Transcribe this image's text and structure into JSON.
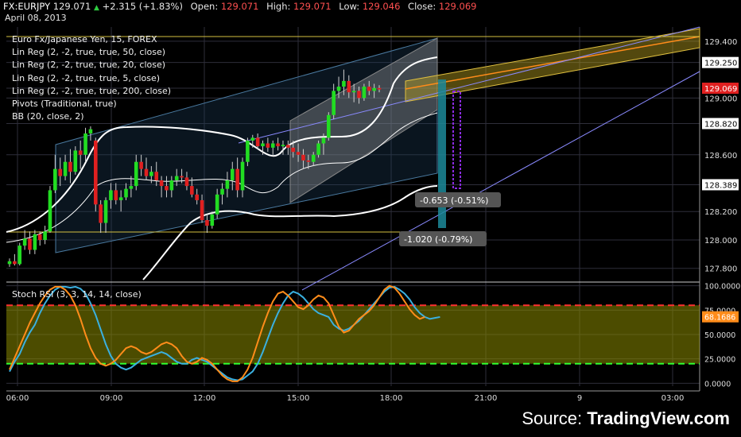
{
  "header": {
    "symbol": "FX:EURJPY",
    "last": "129.071",
    "change": "+2.315 (+1.83%)",
    "open_label": "Open:",
    "open": "129.071",
    "high_label": "High:",
    "high": "129.071",
    "low_label": "Low:",
    "low": "129.046",
    "close_label": "Close:",
    "close": "129.069",
    "date": "April 08, 2013"
  },
  "legend": [
    "Euro Fx/Japanese Yen, 15, FOREX",
    "Lin Reg (2, -2, true, true, 50, close)",
    "Lin Reg (2, -2, true, true, 20, close)",
    "Lin Reg (2, -2, true, true, 5, close)",
    "Lin Reg (2, -2, true, true, 200, close)",
    "Pivots (Traditional, true)",
    "BB (20, close, 2)"
  ],
  "rsi_title": "Stoch RSI (3, 3, 14, 14, close)",
  "source": {
    "prefix": "Source:",
    "brand": "TradingView.com"
  },
  "colors": {
    "up": "#22dd22",
    "down": "#e02020",
    "k_line": "#3ab0e0",
    "d_line": "#ff8c1a",
    "band": "#8a8a00",
    "price_badge": "#e02020",
    "rsi_badge": "#ff8c1a"
  },
  "chart_data": [
    {
      "type": "candlestick",
      "title": "Euro Fx/Japanese Yen, 15, FOREX",
      "x_ticks": [
        "06:00",
        "09:00",
        "12:00",
        "15:00",
        "18:00",
        "21:00",
        "9",
        "03:00"
      ],
      "y_ticks": [
        127.8,
        128.0,
        128.2,
        128.389,
        128.6,
        128.82,
        129.0,
        129.069,
        129.25,
        129.4
      ],
      "ylim": [
        127.72,
        129.5
      ],
      "price_labels": [
        "129.400",
        "129.250",
        "129.069",
        "129.000",
        "128.820",
        "128.600",
        "128.389",
        "128.200",
        "128.000",
        "127.800"
      ],
      "annotations": [
        "-0.653 (-0.51%)",
        "-1.020 (-0.79%)"
      ],
      "candles": [
        [
          127.83,
          127.87,
          127.81,
          127.85
        ],
        [
          127.85,
          127.9,
          127.82,
          127.83
        ],
        [
          127.83,
          127.98,
          127.82,
          127.96
        ],
        [
          127.96,
          128.07,
          127.93,
          128.01
        ],
        [
          128.01,
          128.06,
          127.9,
          127.93
        ],
        [
          127.93,
          128.07,
          127.9,
          128.04
        ],
        [
          128.04,
          128.06,
          127.96,
          128.0
        ],
        [
          128.0,
          128.1,
          127.97,
          128.06
        ],
        [
          128.06,
          128.38,
          128.05,
          128.35
        ],
        [
          128.35,
          128.6,
          128.33,
          128.5
        ],
        [
          128.5,
          128.58,
          128.38,
          128.45
        ],
        [
          128.45,
          128.6,
          128.42,
          128.55
        ],
        [
          128.55,
          128.64,
          128.4,
          128.48
        ],
        [
          128.48,
          128.66,
          128.46,
          128.63
        ],
        [
          128.63,
          128.7,
          128.5,
          128.6
        ],
        [
          128.6,
          128.79,
          128.55,
          128.75
        ],
        [
          128.75,
          128.8,
          128.7,
          128.78
        ],
        [
          128.7,
          128.72,
          128.2,
          128.25
        ],
        [
          128.25,
          128.28,
          128.05,
          128.12
        ],
        [
          128.12,
          128.3,
          128.05,
          128.28
        ],
        [
          128.28,
          128.4,
          128.22,
          128.35
        ],
        [
          128.35,
          128.4,
          128.25,
          128.28
        ],
        [
          128.28,
          128.35,
          128.2,
          128.3
        ],
        [
          128.3,
          128.4,
          128.28,
          128.36
        ],
        [
          128.36,
          128.45,
          128.3,
          128.38
        ],
        [
          128.38,
          128.6,
          128.35,
          128.55
        ],
        [
          128.55,
          128.6,
          128.45,
          128.5
        ],
        [
          128.5,
          128.58,
          128.42,
          128.45
        ],
        [
          128.45,
          128.52,
          128.4,
          128.48
        ],
        [
          128.48,
          128.55,
          128.38,
          128.42
        ],
        [
          128.42,
          128.45,
          128.3,
          128.38
        ],
        [
          128.38,
          128.45,
          128.3,
          128.35
        ],
        [
          128.35,
          128.45,
          128.3,
          128.42
        ],
        [
          128.42,
          128.5,
          128.38,
          128.45
        ],
        [
          128.45,
          128.5,
          128.4,
          128.44
        ],
        [
          128.44,
          128.48,
          128.35,
          128.38
        ],
        [
          128.38,
          128.44,
          128.3,
          128.32
        ],
        [
          128.32,
          128.36,
          128.25,
          128.28
        ],
        [
          128.28,
          128.32,
          128.12,
          128.14
        ],
        [
          128.14,
          128.18,
          128.05,
          128.1
        ],
        [
          128.1,
          128.2,
          128.08,
          128.18
        ],
        [
          128.18,
          128.36,
          128.15,
          128.32
        ],
        [
          128.32,
          128.4,
          128.25,
          128.36
        ],
        [
          128.36,
          128.48,
          128.3,
          128.42
        ],
        [
          128.42,
          128.55,
          128.35,
          128.5
        ],
        [
          128.5,
          128.58,
          128.3,
          128.35
        ],
        [
          128.35,
          128.58,
          128.3,
          128.55
        ],
        [
          128.55,
          128.72,
          128.52,
          128.7
        ],
        [
          128.7,
          128.74,
          128.65,
          128.72
        ],
        [
          128.72,
          128.75,
          128.64,
          128.66
        ],
        [
          128.66,
          128.7,
          128.6,
          128.68
        ],
        [
          128.68,
          128.72,
          128.62,
          128.65
        ],
        [
          128.65,
          128.7,
          128.6,
          128.68
        ],
        [
          128.68,
          128.72,
          128.63,
          128.66
        ],
        [
          128.66,
          128.7,
          128.6,
          128.67
        ],
        [
          128.67,
          128.7,
          128.6,
          128.65
        ],
        [
          128.65,
          128.7,
          128.58,
          128.62
        ],
        [
          128.62,
          128.68,
          128.55,
          128.6
        ],
        [
          128.6,
          128.64,
          128.5,
          128.56
        ],
        [
          128.56,
          128.6,
          128.5,
          128.55
        ],
        [
          128.55,
          128.62,
          128.52,
          128.6
        ],
        [
          128.6,
          128.7,
          128.58,
          128.68
        ],
        [
          128.68,
          128.75,
          128.6,
          128.72
        ],
        [
          128.72,
          128.9,
          128.7,
          128.88
        ],
        [
          128.88,
          129.1,
          128.85,
          129.05
        ],
        [
          129.05,
          129.15,
          129.0,
          129.08
        ],
        [
          129.08,
          129.2,
          129.02,
          129.12
        ],
        [
          129.12,
          129.16,
          129.0,
          129.04
        ],
        [
          129.04,
          129.1,
          128.97,
          129.05
        ],
        [
          129.05,
          129.08,
          128.96,
          129.0
        ],
        [
          129.0,
          129.1,
          128.98,
          129.08
        ],
        [
          129.08,
          129.12,
          129.02,
          129.05
        ],
        [
          129.05,
          129.1,
          129.0,
          129.07
        ],
        [
          129.07,
          129.09,
          129.04,
          129.06
        ]
      ]
    },
    {
      "type": "line",
      "title": "Stoch RSI (3, 3, 14, 14, close)",
      "y_ticks": [
        0,
        25,
        50,
        75,
        100
      ],
      "y_tick_labels": [
        "0.0000",
        "25.0000",
        "50.0000",
        "75.0000",
        "100.0000"
      ],
      "ylim": [
        -3,
        103
      ],
      "overbought": 80,
      "oversold": 20,
      "current_label": "68.1686",
      "series": [
        {
          "values": [
            12,
            22,
            30,
            42,
            52,
            60,
            72,
            82,
            90,
            96,
            99,
            99,
            98,
            99,
            97,
            92,
            82,
            70,
            55,
            40,
            28,
            20,
            16,
            14,
            16,
            20,
            24,
            26,
            28,
            30,
            32,
            30,
            26,
            22,
            20,
            20,
            24,
            26,
            24,
            22,
            18,
            14,
            10,
            6,
            4,
            3,
            4,
            8,
            12,
            20,
            32,
            46,
            60,
            72,
            82,
            90,
            94,
            92,
            88,
            82,
            76,
            72,
            70,
            68,
            60,
            56,
            54,
            56,
            60,
            64,
            70,
            76,
            82,
            88,
            94,
            98,
            99,
            96,
            92,
            86,
            78,
            72,
            68,
            66,
            67,
            68
          ]
        },
        {
          "values": [
            14,
            26,
            38,
            50,
            62,
            72,
            82,
            90,
            96,
            99,
            99,
            96,
            90,
            80,
            66,
            50,
            36,
            26,
            20,
            18,
            20,
            24,
            30,
            36,
            38,
            36,
            32,
            30,
            32,
            36,
            40,
            42,
            40,
            36,
            28,
            22,
            20,
            22,
            26,
            24,
            20,
            14,
            8,
            4,
            2,
            2,
            6,
            14,
            26,
            42,
            58,
            72,
            84,
            92,
            94,
            90,
            84,
            78,
            76,
            80,
            86,
            90,
            88,
            82,
            70,
            58,
            52,
            54,
            60,
            66,
            70,
            74,
            80,
            88,
            96,
            100,
            98,
            92,
            84,
            76,
            70,
            66,
            68
          ]
        }
      ]
    }
  ]
}
